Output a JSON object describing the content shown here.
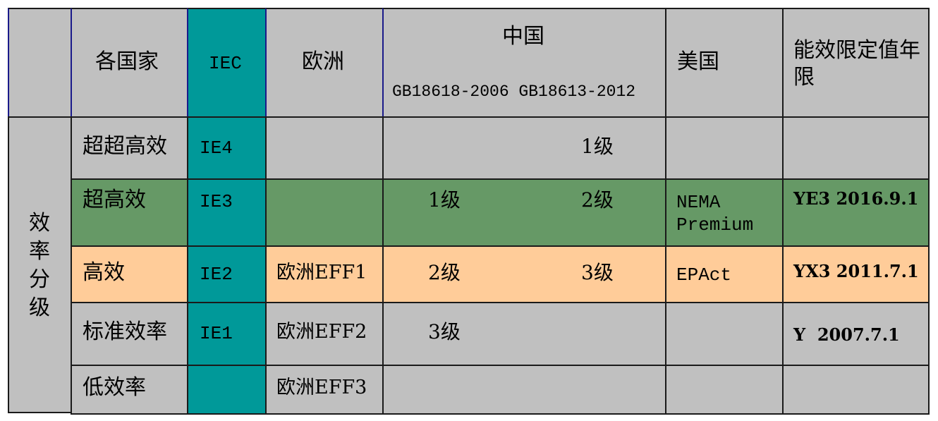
{
  "header": {
    "countries": "各国家",
    "iec": "IEC",
    "europe": "欧洲",
    "china": "中国",
    "china_standards": "GB18618-2006 GB18613-2012",
    "usa": "美国",
    "limit_year": "能效限定值年限"
  },
  "row_group_label": "效率分级",
  "rows": [
    {
      "level": "超超高效",
      "iec": "IE4",
      "europe": "",
      "china_2006": "",
      "china_2012": "1级",
      "usa": "",
      "limit": ""
    },
    {
      "level": "超高效",
      "iec": "IE3",
      "europe": "",
      "china_2006": "1级",
      "china_2012": "2级",
      "usa": "NEMA Premium",
      "limit": "YE3 2016.9.1"
    },
    {
      "level": "高效",
      "iec": "IE2",
      "europe": "欧洲EFF1",
      "china_2006": "2级",
      "china_2012": "3级",
      "usa": "EPAct",
      "limit": "YX3 2011.7.1"
    },
    {
      "level": "标准效率",
      "iec": "IE1",
      "europe": "欧洲EFF2",
      "china_2006": "3级",
      "china_2012": "",
      "usa": "",
      "limit": "Y  2007.7.1"
    },
    {
      "level": "低效率",
      "iec": "",
      "europe": "欧洲EFF3",
      "china_2006": "",
      "china_2012": "",
      "usa": "",
      "limit": ""
    }
  ],
  "colors": {
    "gray": "#c0c0c0",
    "iec_teal": "#009999",
    "super_high_green": "#669966",
    "high_orange": "#ffcc99"
  }
}
